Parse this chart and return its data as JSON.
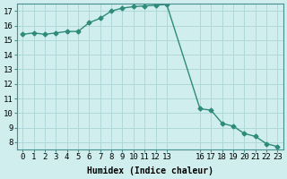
{
  "x": [
    0,
    1,
    2,
    3,
    4,
    5,
    6,
    7,
    8,
    9,
    10,
    11,
    12,
    13,
    16,
    17,
    18,
    19,
    20,
    21,
    22,
    23
  ],
  "y": [
    15.4,
    15.5,
    15.4,
    15.5,
    15.6,
    15.6,
    16.2,
    16.5,
    17.0,
    17.2,
    17.3,
    17.35,
    17.4,
    17.45,
    10.3,
    10.2,
    9.3,
    9.1,
    8.6,
    8.4,
    7.9,
    7.7
  ],
  "line_color": "#2e8b7a",
  "marker_color": "#2e8b7a",
  "bg_color": "#d0eeee",
  "grid_color": "#b0d8d8",
  "xlabel": "Humidex (Indice chaleur)",
  "xlim": [
    -0.5,
    23.5
  ],
  "ylim": [
    7.5,
    17.5
  ],
  "yticks": [
    8,
    9,
    10,
    11,
    12,
    13,
    14,
    15,
    16,
    17
  ],
  "xtick_positions": [
    0,
    1,
    2,
    3,
    4,
    5,
    6,
    7,
    8,
    9,
    10,
    11,
    12,
    13,
    16,
    17,
    18,
    19,
    20,
    21,
    22,
    23
  ],
  "xtick_labels": [
    "0",
    "1",
    "2",
    "3",
    "4",
    "5",
    "6",
    "7",
    "8",
    "9",
    "10",
    "11",
    "12",
    "13",
    "16",
    "17",
    "18",
    "19",
    "20",
    "21",
    "22",
    "23"
  ],
  "title_fontsize": 8,
  "label_fontsize": 7,
  "tick_fontsize": 6.5
}
